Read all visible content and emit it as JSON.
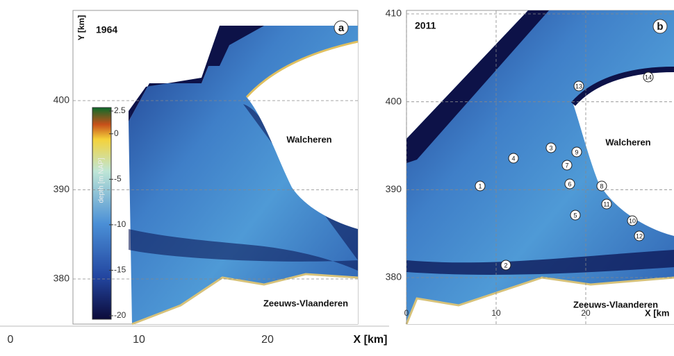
{
  "panels": [
    {
      "year": "1964",
      "letter": "a",
      "y_axis_label": "Y [km]",
      "yticks": [
        400,
        390,
        380
      ],
      "places": [
        "Walcheren",
        "Zeeuws-Vlaanderen"
      ]
    },
    {
      "year": "2011",
      "letter": "b",
      "yticks": [
        410,
        400,
        390,
        380
      ],
      "xticks": [
        0,
        10,
        20
      ],
      "x_axis_label": "X [km",
      "places": [
        "Walcheren",
        "Zeeuws-Vlaanderen"
      ],
      "markers": [
        "1",
        "2",
        "3",
        "4",
        "5",
        "6",
        "7",
        "8",
        "9",
        "10",
        "11",
        "12",
        "13",
        "14"
      ]
    }
  ],
  "bottom_axis": {
    "ticks": [
      0,
      10,
      20
    ],
    "label": "X [km]"
  },
  "colorbar": {
    "label": "depth [m NAP]",
    "ticks": [
      2.5,
      0,
      -5,
      -10,
      -15,
      -20
    ]
  }
}
